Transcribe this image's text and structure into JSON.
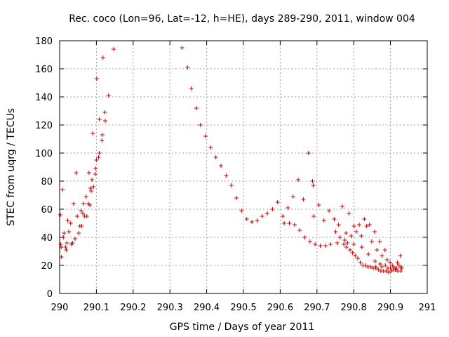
{
  "chart_data": {
    "type": "scatter",
    "title": "Rec. coco (Lon=96, Lat=-12, h=HE), days 289-290, 2011, window 004",
    "xlabel": "GPS time / Days of year 2011",
    "ylabel": "STEC from uqrg / TECUs",
    "xlim": [
      290,
      291
    ],
    "ylim": [
      0,
      180
    ],
    "xticks": [
      290,
      290.1,
      290.2,
      290.3,
      290.4,
      290.5,
      290.6,
      290.7,
      290.8,
      290.9,
      291
    ],
    "xtick_labels": [
      "290",
      "290.1",
      "290.2",
      "290.3",
      "290.4",
      "290.5",
      "290.6",
      "290.7",
      "290.8",
      "290.9",
      "291"
    ],
    "yticks": [
      0,
      20,
      40,
      60,
      80,
      100,
      120,
      140,
      160,
      180
    ],
    "ytick_labels": [
      "0",
      "20",
      "40",
      "60",
      "80",
      "100",
      "120",
      "140",
      "160",
      "180"
    ],
    "grid": true,
    "legend": "none",
    "marker": "plus",
    "color": "#cc0000",
    "points": [
      [
        290.002,
        56.0
      ],
      [
        290.003,
        35.0
      ],
      [
        290.004,
        33.0
      ],
      [
        290.005,
        26.0
      ],
      [
        290.008,
        74.0
      ],
      [
        290.01,
        40.0
      ],
      [
        290.012,
        43.0
      ],
      [
        290.016,
        33.0
      ],
      [
        290.018,
        31.0
      ],
      [
        290.02,
        36.0
      ],
      [
        290.022,
        52.0
      ],
      [
        290.025,
        44.0
      ],
      [
        290.03,
        50.0
      ],
      [
        290.032,
        35.0
      ],
      [
        290.035,
        36.0
      ],
      [
        290.038,
        64.0
      ],
      [
        290.042,
        39.0
      ],
      [
        290.045,
        86.0
      ],
      [
        290.048,
        55.0
      ],
      [
        290.052,
        43.0
      ],
      [
        290.055,
        48.0
      ],
      [
        290.058,
        59.0
      ],
      [
        290.06,
        48.0
      ],
      [
        290.063,
        57.0
      ],
      [
        290.065,
        64.0
      ],
      [
        290.068,
        55.0
      ],
      [
        290.072,
        69.0
      ],
      [
        290.074,
        55.0
      ],
      [
        290.078,
        64.0
      ],
      [
        290.08,
        86.0
      ],
      [
        290.082,
        63.0
      ],
      [
        290.084,
        75.0
      ],
      [
        290.086,
        73.0
      ],
      [
        290.088,
        81.0
      ],
      [
        290.09,
        114.0
      ],
      [
        290.092,
        76.0
      ],
      [
        290.097,
        85.0
      ],
      [
        290.098,
        89.0
      ],
      [
        290.1,
        95.0
      ],
      [
        290.101,
        153.0
      ],
      [
        290.106,
        97.0
      ],
      [
        290.108,
        100.0
      ],
      [
        290.108,
        124.0
      ],
      [
        290.115,
        109.0
      ],
      [
        290.116,
        113.0
      ],
      [
        290.118,
        168.0
      ],
      [
        290.123,
        129.0
      ],
      [
        290.124,
        123.0
      ],
      [
        290.133,
        141.0
      ],
      [
        290.147,
        174.0
      ],
      [
        290.333,
        175.0
      ],
      [
        290.348,
        161.0
      ],
      [
        290.358,
        146.0
      ],
      [
        290.372,
        132.0
      ],
      [
        290.383,
        120.0
      ],
      [
        290.397,
        112.0
      ],
      [
        290.411,
        104.0
      ],
      [
        290.425,
        97.0
      ],
      [
        290.439,
        91.0
      ],
      [
        290.453,
        84.0
      ],
      [
        290.467,
        77.0
      ],
      [
        290.481,
        68.0
      ],
      [
        290.495,
        59.0
      ],
      [
        290.509,
        53.0
      ],
      [
        290.523,
        51.0
      ],
      [
        290.537,
        52.0
      ],
      [
        290.551,
        55.0
      ],
      [
        290.565,
        57.0
      ],
      [
        290.579,
        60.0
      ],
      [
        290.593,
        65.0
      ],
      [
        290.607,
        55.0
      ],
      [
        290.611,
        50.0
      ],
      [
        290.621,
        61.0
      ],
      [
        290.625,
        50.0
      ],
      [
        290.635,
        69.0
      ],
      [
        290.639,
        49.0
      ],
      [
        290.649,
        81.0
      ],
      [
        290.653,
        45.0
      ],
      [
        290.663,
        67.0
      ],
      [
        290.667,
        40.0
      ],
      [
        290.677,
        100.0
      ],
      [
        290.681,
        37.0
      ],
      [
        290.688,
        80.0
      ],
      [
        290.69,
        77.0
      ],
      [
        290.691,
        55.0
      ],
      [
        290.695,
        35.0
      ],
      [
        290.705,
        63.0
      ],
      [
        290.709,
        34.0
      ],
      [
        290.719,
        52.0
      ],
      [
        290.723,
        34.0
      ],
      [
        290.733,
        59.0
      ],
      [
        290.737,
        35.0
      ],
      [
        290.747,
        53.0
      ],
      [
        290.751,
        44.0
      ],
      [
        290.755,
        36.0
      ],
      [
        290.759,
        49.0
      ],
      [
        290.763,
        40.0
      ],
      [
        290.769,
        62.0
      ],
      [
        290.773,
        35.0
      ],
      [
        290.776,
        38.0
      ],
      [
        290.779,
        43.0
      ],
      [
        290.783,
        36.0
      ],
      [
        290.787,
        57.0
      ],
      [
        290.79,
        31.0
      ],
      [
        290.793,
        41.0
      ],
      [
        290.797,
        29.0
      ],
      [
        290.801,
        48.0
      ],
      [
        290.804,
        27.0
      ],
      [
        290.807,
        44.0
      ],
      [
        290.811,
        25.0
      ],
      [
        290.815,
        49.0
      ],
      [
        290.818,
        22.0
      ],
      [
        290.821,
        41.0
      ],
      [
        290.825,
        20.0
      ],
      [
        290.829,
        53.0
      ],
      [
        290.832,
        20.0
      ],
      [
        290.835,
        48.0
      ],
      [
        290.839,
        19.0
      ],
      [
        290.843,
        49.0
      ],
      [
        290.846,
        19.0
      ],
      [
        290.849,
        37.0
      ],
      [
        290.853,
        18.0
      ],
      [
        290.857,
        44.0
      ],
      [
        290.86,
        18.0
      ],
      [
        290.863,
        31.0
      ],
      [
        290.867,
        17.0
      ],
      [
        290.871,
        37.0
      ],
      [
        290.874,
        16.0
      ],
      [
        290.877,
        27.0
      ],
      [
        290.881,
        16.0
      ],
      [
        290.885,
        31.0
      ],
      [
        290.888,
        16.0
      ],
      [
        290.891,
        24.0
      ],
      [
        290.895,
        15.0
      ],
      [
        290.899,
        22.0
      ],
      [
        290.902,
        16.0
      ],
      [
        290.905,
        20.0
      ],
      [
        290.909,
        19.0
      ],
      [
        290.913,
        17.0
      ],
      [
        290.916,
        18.0
      ],
      [
        290.919,
        22.0
      ],
      [
        290.923,
        20.0
      ],
      [
        290.927,
        27.0
      ],
      [
        290.93,
        18.0
      ],
      [
        290.78,
        33.0
      ],
      [
        290.8,
        35.0
      ],
      [
        290.822,
        33.0
      ],
      [
        290.84,
        28.0
      ],
      [
        290.858,
        23.0
      ],
      [
        290.872,
        21.0
      ],
      [
        290.886,
        20.0
      ],
      [
        290.9,
        18.0
      ],
      [
        290.914,
        17.0
      ],
      [
        290.928,
        16.0
      ],
      [
        290.86,
        19.0
      ],
      [
        290.876,
        19.0
      ],
      [
        290.893,
        18.0
      ],
      [
        290.908,
        17.0
      ],
      [
        290.92,
        16.0
      ],
      [
        290.929,
        19.0
      ]
    ]
  }
}
